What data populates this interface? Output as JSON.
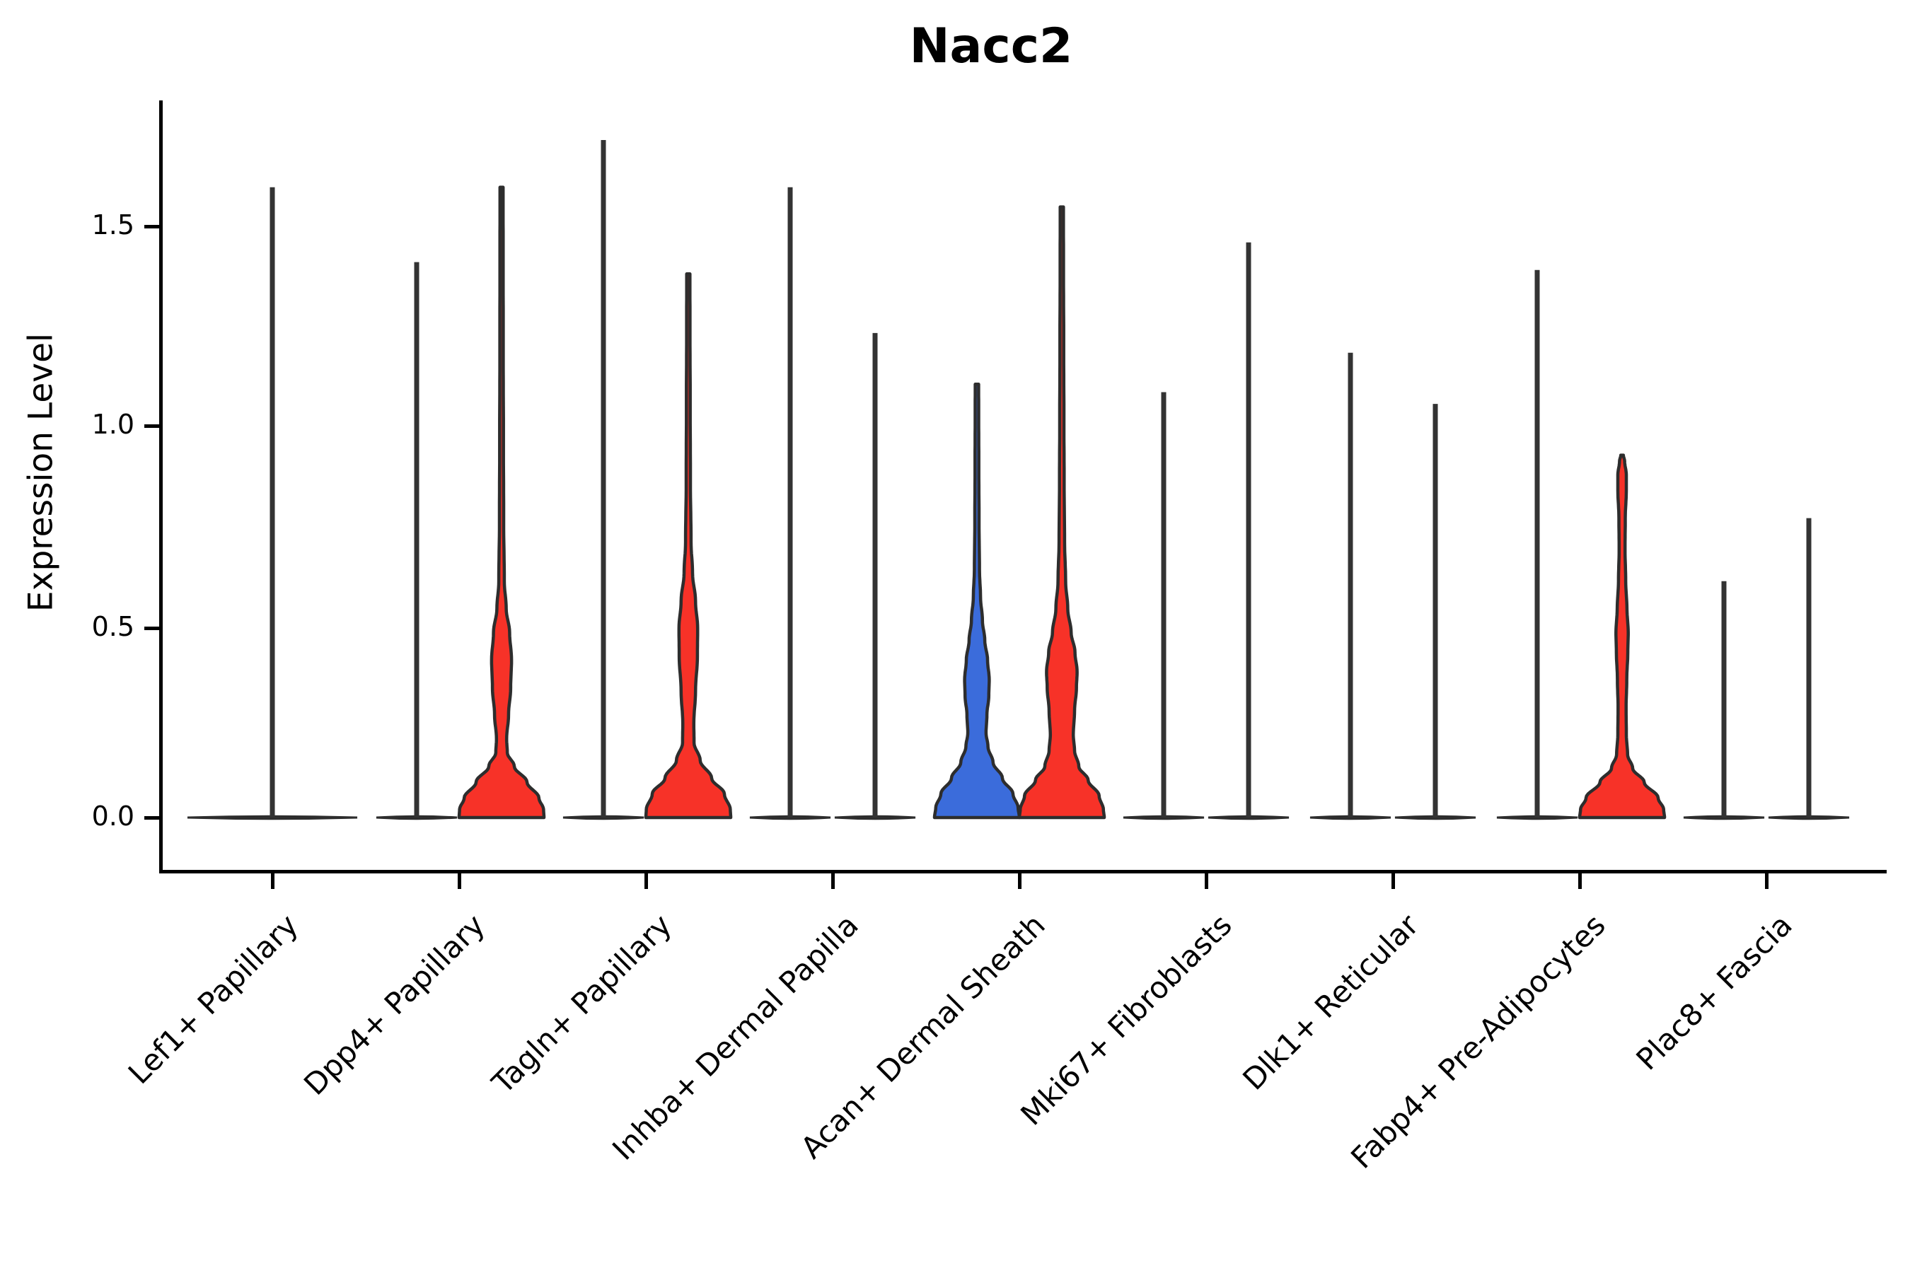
{
  "chart_data": {
    "type": "violin",
    "title": "Nacc2",
    "ylabel": "Expression Level",
    "xlabel": "",
    "grid": false,
    "legend": "none",
    "ylim": [
      0,
      1.8
    ],
    "y_ticks": [
      {
        "label": "1.5",
        "value": 1.5
      },
      {
        "label": "1.0",
        "value": 1.0
      },
      {
        "label": "0.5",
        "value": 0.5
      },
      {
        "label": "0.0",
        "value": 0.0
      }
    ],
    "categories": [
      "Lef1+ Papillary",
      "Dpp4+ Papillary",
      "Tagln+ Papillary",
      "Inhba+ Dermal Papilla",
      "Acan+ Dermal Sheath",
      "Mki67+ Fibroblasts",
      "Dlk1+ Reticular",
      "Fabp4+ Pre-Adipocytes",
      "Plac8+ Fascia"
    ],
    "split_colors": {
      "group_blue": "#3B6CDB",
      "group_red": "#F73228"
    },
    "outline_color": "#2D2D2D",
    "profile_format": "[expression_value, relative_half_width]",
    "violins": [
      {
        "category": "Lef1+ Papillary",
        "slot": "full",
        "shape": "flat",
        "max": 1.6,
        "color": "none"
      },
      {
        "category": "Dpp4+ Papillary",
        "slot": "left",
        "shape": "flat",
        "max": 1.41,
        "color": "none"
      },
      {
        "category": "Dpp4+ Papillary",
        "slot": "right",
        "shape": "body",
        "max": 1.6,
        "color": "#F73228",
        "profile": [
          [
            0,
            1.0
          ],
          [
            0.02,
            0.99
          ],
          [
            0.05,
            0.88
          ],
          [
            0.09,
            0.6
          ],
          [
            0.13,
            0.3
          ],
          [
            0.165,
            0.135
          ],
          [
            0.2,
            0.12
          ],
          [
            0.26,
            0.165
          ],
          [
            0.33,
            0.215
          ],
          [
            0.4,
            0.235
          ],
          [
            0.47,
            0.19
          ],
          [
            0.53,
            0.11
          ],
          [
            0.6,
            0.065
          ],
          [
            0.75,
            0.05
          ],
          [
            0.95,
            0.045
          ],
          [
            1.2,
            0.04
          ],
          [
            1.45,
            0.038
          ],
          [
            1.6,
            0.036
          ]
        ]
      },
      {
        "category": "Tagln+ Papillary",
        "slot": "left",
        "shape": "flat",
        "max": 1.72,
        "color": "none"
      },
      {
        "category": "Tagln+ Papillary",
        "slot": "right",
        "shape": "body",
        "max": 1.38,
        "color": "#F73228",
        "profile": [
          [
            0,
            1.0
          ],
          [
            0.02,
            0.99
          ],
          [
            0.06,
            0.85
          ],
          [
            0.1,
            0.55
          ],
          [
            0.145,
            0.28
          ],
          [
            0.19,
            0.135
          ],
          [
            0.24,
            0.13
          ],
          [
            0.32,
            0.17
          ],
          [
            0.41,
            0.215
          ],
          [
            0.48,
            0.22
          ],
          [
            0.55,
            0.17
          ],
          [
            0.62,
            0.1
          ],
          [
            0.7,
            0.065
          ],
          [
            0.85,
            0.05
          ],
          [
            1.05,
            0.045
          ],
          [
            1.25,
            0.04
          ],
          [
            1.38,
            0.038
          ]
        ]
      },
      {
        "category": "Inhba+ Dermal Papilla",
        "slot": "left",
        "shape": "flat",
        "max": 1.6,
        "color": "none"
      },
      {
        "category": "Inhba+ Dermal Papilla",
        "slot": "right",
        "shape": "flat",
        "max": 1.23,
        "color": "none"
      },
      {
        "category": "Acan+ Dermal Sheath",
        "slot": "left",
        "shape": "body",
        "max": 1.1,
        "color": "#3B6CDB",
        "profile": [
          [
            0,
            1.0
          ],
          [
            0.025,
            0.97
          ],
          [
            0.06,
            0.85
          ],
          [
            0.1,
            0.6
          ],
          [
            0.14,
            0.38
          ],
          [
            0.18,
            0.26
          ],
          [
            0.215,
            0.215
          ],
          [
            0.26,
            0.235
          ],
          [
            0.31,
            0.28
          ],
          [
            0.35,
            0.29
          ],
          [
            0.4,
            0.25
          ],
          [
            0.45,
            0.185
          ],
          [
            0.5,
            0.13
          ],
          [
            0.56,
            0.085
          ],
          [
            0.63,
            0.06
          ],
          [
            0.75,
            0.05
          ],
          [
            0.9,
            0.045
          ],
          [
            1.02,
            0.042
          ],
          [
            1.1,
            0.04
          ]
        ]
      },
      {
        "category": "Acan+ Dermal Sheath",
        "slot": "right",
        "shape": "body",
        "max": 1.55,
        "color": "#F73228",
        "profile": [
          [
            0,
            1.0
          ],
          [
            0.02,
            0.98
          ],
          [
            0.055,
            0.88
          ],
          [
            0.095,
            0.62
          ],
          [
            0.13,
            0.4
          ],
          [
            0.17,
            0.3
          ],
          [
            0.21,
            0.27
          ],
          [
            0.27,
            0.3
          ],
          [
            0.33,
            0.345
          ],
          [
            0.37,
            0.36
          ],
          [
            0.42,
            0.31
          ],
          [
            0.47,
            0.22
          ],
          [
            0.53,
            0.14
          ],
          [
            0.6,
            0.09
          ],
          [
            0.7,
            0.065
          ],
          [
            0.85,
            0.055
          ],
          [
            1.0,
            0.05
          ],
          [
            1.2,
            0.045
          ],
          [
            1.4,
            0.04
          ],
          [
            1.55,
            0.038
          ]
        ]
      },
      {
        "category": "Mki67+ Fibroblasts",
        "slot": "left",
        "shape": "flat",
        "max": 1.08,
        "color": "none"
      },
      {
        "category": "Mki67+ Fibroblasts",
        "slot": "right",
        "shape": "flat",
        "max": 1.46,
        "color": "none"
      },
      {
        "category": "Dlk1+ Reticular",
        "slot": "left",
        "shape": "flat",
        "max": 1.18,
        "color": "none"
      },
      {
        "category": "Dlk1+ Reticular",
        "slot": "right",
        "shape": "flat",
        "max": 1.05,
        "color": "none"
      },
      {
        "category": "Fabp4+ Pre-Adipocytes",
        "slot": "left",
        "shape": "flat",
        "max": 1.39,
        "color": "none"
      },
      {
        "category": "Fabp4+ Pre-Adipocytes",
        "slot": "right",
        "shape": "body",
        "max": 0.92,
        "color": "#F73228",
        "profile": [
          [
            0,
            1.0
          ],
          [
            0.02,
            0.98
          ],
          [
            0.05,
            0.85
          ],
          [
            0.09,
            0.52
          ],
          [
            0.125,
            0.25
          ],
          [
            0.16,
            0.13
          ],
          [
            0.21,
            0.1
          ],
          [
            0.28,
            0.095
          ],
          [
            0.35,
            0.11
          ],
          [
            0.42,
            0.135
          ],
          [
            0.47,
            0.145
          ],
          [
            0.53,
            0.115
          ],
          [
            0.6,
            0.085
          ],
          [
            0.68,
            0.07
          ],
          [
            0.76,
            0.075
          ],
          [
            0.83,
            0.1
          ],
          [
            0.87,
            0.1
          ],
          [
            0.905,
            0.06
          ],
          [
            0.92,
            0.03
          ]
        ]
      },
      {
        "category": "Plac8+ Fascia",
        "slot": "left",
        "shape": "flat",
        "max": 0.6,
        "color": "none"
      },
      {
        "category": "Plac8+ Fascia",
        "slot": "right",
        "shape": "flat",
        "max": 0.76,
        "color": "none"
      }
    ]
  }
}
